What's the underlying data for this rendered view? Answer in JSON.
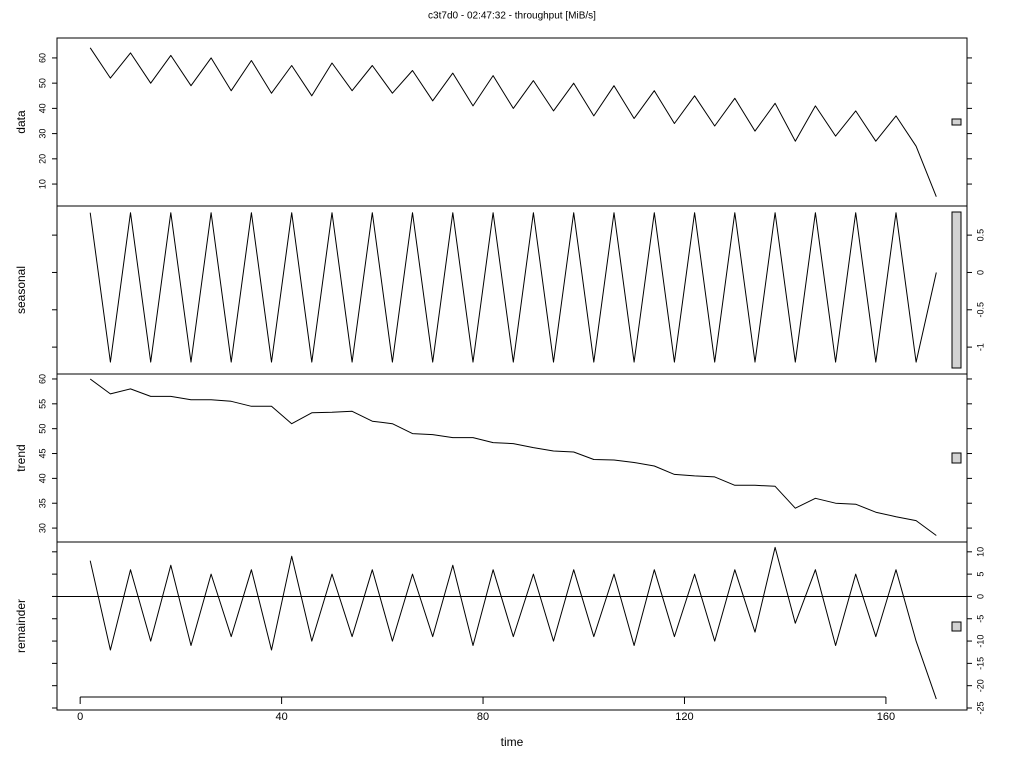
{
  "chart_data": [
    {
      "type": "line",
      "title": "c3t7d0 - 02:47:32 - throughput [MiB/s]",
      "ylabel": "data",
      "yaxis_side": "left",
      "color": "#000000",
      "x": [
        2,
        6,
        10,
        14,
        18,
        22,
        26,
        30,
        34,
        38,
        42,
        46,
        50,
        54,
        58,
        62,
        66,
        70,
        74,
        78,
        82,
        86,
        90,
        94,
        98,
        102,
        106,
        110,
        114,
        118,
        122,
        126,
        130,
        134,
        138,
        142,
        146,
        150,
        154,
        158,
        162,
        166,
        170
      ],
      "values": [
        64,
        52,
        62,
        50,
        61,
        49,
        60,
        47,
        59,
        46,
        57,
        45,
        58,
        47,
        57,
        46,
        55,
        43,
        54,
        41,
        53,
        40,
        51,
        39,
        50,
        37,
        49,
        36,
        47,
        34,
        45,
        33,
        44,
        31,
        42,
        27,
        41,
        29,
        39,
        27,
        37,
        25,
        5
      ],
      "xlim": [
        -4.6,
        176.1
      ],
      "ylim": [
        1.3,
        67.9
      ],
      "yticks": [
        10,
        20,
        30,
        40,
        50,
        60
      ]
    },
    {
      "type": "line",
      "ylabel": "seasonal",
      "yaxis_side": "right",
      "color": "#000000",
      "x": [
        2,
        6,
        10,
        14,
        18,
        22,
        26,
        30,
        34,
        38,
        42,
        46,
        50,
        54,
        58,
        62,
        66,
        70,
        74,
        78,
        82,
        86,
        90,
        94,
        98,
        102,
        106,
        110,
        114,
        118,
        122,
        126,
        130,
        134,
        138,
        142,
        146,
        150,
        154,
        158,
        162,
        166,
        170
      ],
      "values": [
        0.8,
        -1.2,
        0.8,
        -1.2,
        0.8,
        -1.2,
        0.8,
        -1.2,
        0.8,
        -1.2,
        0.8,
        -1.2,
        0.8,
        -1.2,
        0.8,
        -1.2,
        0.8,
        -1.2,
        0.8,
        -1.2,
        0.8,
        -1.2,
        0.8,
        -1.2,
        0.8,
        -1.2,
        0.8,
        -1.2,
        0.8,
        -1.2,
        0.8,
        -1.2,
        0.8,
        -1.2,
        0.8,
        -1.2,
        0.8,
        -1.2,
        0.8,
        -1.2,
        0.8,
        -1.2,
        0
      ],
      "xlim": [
        -4.6,
        176.1
      ],
      "ylim": [
        -1.36,
        0.89
      ],
      "yticks": [
        -1.0,
        -0.5,
        0.0,
        0.5
      ]
    },
    {
      "type": "line",
      "ylabel": "trend",
      "yaxis_side": "left",
      "color": "#000000",
      "x": [
        2,
        6,
        10,
        14,
        18,
        22,
        26,
        30,
        34,
        38,
        42,
        46,
        50,
        54,
        58,
        62,
        66,
        70,
        74,
        78,
        82,
        86,
        90,
        94,
        98,
        102,
        106,
        110,
        114,
        118,
        122,
        126,
        130,
        134,
        138,
        142,
        146,
        150,
        154,
        158,
        162,
        166,
        170
      ],
      "values": [
        60,
        57,
        58,
        56.5,
        56.5,
        55.8,
        55.8,
        55.5,
        54.5,
        54.5,
        51,
        53.2,
        53.3,
        53.5,
        51.5,
        51,
        49,
        48.8,
        48.2,
        48.2,
        47.2,
        47,
        46.2,
        45.5,
        45.3,
        43.8,
        43.7,
        43.2,
        42.5,
        40.8,
        40.5,
        40.3,
        38.6,
        38.6,
        38.4,
        34,
        36,
        35,
        34.8,
        33.2,
        32.3,
        31.5,
        28.5
      ],
      "xlim": [
        -4.6,
        176.1
      ],
      "ylim": [
        27.2,
        61.0
      ],
      "yticks": [
        30,
        35,
        40,
        45,
        50,
        55,
        60
      ]
    },
    {
      "type": "line",
      "ylabel": "remainder",
      "xlabel": "time",
      "yaxis_side": "right",
      "color": "#000000",
      "hline": 0,
      "x": [
        2,
        6,
        10,
        14,
        18,
        22,
        26,
        30,
        34,
        38,
        42,
        46,
        50,
        54,
        58,
        62,
        66,
        70,
        74,
        78,
        82,
        86,
        90,
        94,
        98,
        102,
        106,
        110,
        114,
        118,
        122,
        126,
        130,
        134,
        138,
        142,
        146,
        150,
        154,
        158,
        162,
        166,
        170
      ],
      "values": [
        8,
        -12,
        6,
        -10,
        7,
        -11,
        5,
        -9,
        6,
        -12,
        9,
        -10,
        5,
        -9,
        6,
        -10,
        5,
        -9,
        7,
        -11,
        6,
        -9,
        5,
        -10,
        6,
        -9,
        5,
        -11,
        6,
        -9,
        5,
        -10,
        6,
        -8,
        11,
        -6,
        6,
        -11,
        5,
        -9,
        6,
        -10,
        -23
      ],
      "xlim": [
        -4.6,
        176.1
      ],
      "ylim": [
        -25.45,
        12.2
      ],
      "yticks": [
        -25,
        -20,
        -15,
        -10,
        -5,
        0,
        5,
        10
      ],
      "xticks": [
        0,
        40,
        80,
        120,
        160
      ]
    }
  ]
}
